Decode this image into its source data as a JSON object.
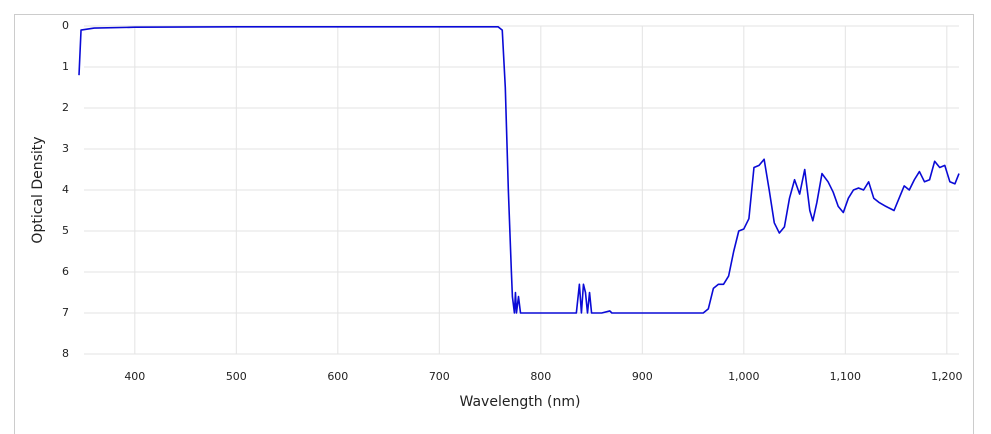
{
  "chart_data": {
    "type": "line",
    "x_label": "Wavelength (nm)",
    "y_label": "Optical Density",
    "color": "#0a0ad6",
    "xlim": [
      345,
      1212
    ],
    "ylim": [
      0,
      8
    ],
    "y_inverted": true,
    "grid": true,
    "xticks": [
      400,
      500,
      600,
      700,
      800,
      900,
      {
        "value": 1000,
        "label": "1,000"
      },
      {
        "value": 1100,
        "label": "1,100"
      },
      {
        "value": 1200,
        "label": "1,200"
      }
    ],
    "yticks": [
      0,
      1,
      2,
      3,
      4,
      5,
      6,
      7,
      8
    ],
    "x": [
      345,
      347,
      360,
      400,
      500,
      600,
      700,
      758,
      762,
      765,
      768,
      771,
      772,
      774,
      775,
      776,
      778,
      780,
      790,
      810,
      820,
      835,
      838,
      840,
      842,
      844,
      846,
      848,
      850,
      860,
      868,
      870,
      900,
      960,
      965,
      970,
      975,
      980,
      985,
      990,
      995,
      1000,
      1005,
      1010,
      1015,
      1020,
      1025,
      1030,
      1035,
      1040,
      1045,
      1050,
      1055,
      1060,
      1065,
      1068,
      1072,
      1077,
      1083,
      1088,
      1093,
      1098,
      1103,
      1108,
      1113,
      1118,
      1123,
      1128,
      1133,
      1140,
      1148,
      1153,
      1158,
      1163,
      1168,
      1173,
      1178,
      1183,
      1188,
      1193,
      1198,
      1203,
      1208,
      1212
    ],
    "values": [
      1.2,
      0.1,
      0.05,
      0.03,
      0.02,
      0.02,
      0.02,
      0.02,
      0.1,
      1.5,
      4,
      6,
      6.6,
      7,
      6.5,
      7,
      6.6,
      7,
      7,
      7,
      7,
      7,
      6.3,
      7,
      6.3,
      6.5,
      7,
      6.5,
      7,
      7,
      6.95,
      7,
      7,
      7,
      6.9,
      6.4,
      6.3,
      6.3,
      6.1,
      5.5,
      5,
      4.95,
      4.7,
      3.45,
      3.4,
      3.25,
      4,
      4.8,
      5.05,
      4.9,
      4.2,
      3.75,
      4.1,
      3.5,
      4.5,
      4.75,
      4.3,
      3.6,
      3.8,
      4.05,
      4.4,
      4.55,
      4.2,
      4.0,
      3.95,
      4.0,
      3.8,
      4.2,
      4.3,
      4.4,
      4.5,
      4.2,
      3.9,
      4.0,
      3.75,
      3.55,
      3.8,
      3.75,
      3.3,
      3.45,
      3.4,
      3.8,
      3.85,
      3.6
    ]
  }
}
